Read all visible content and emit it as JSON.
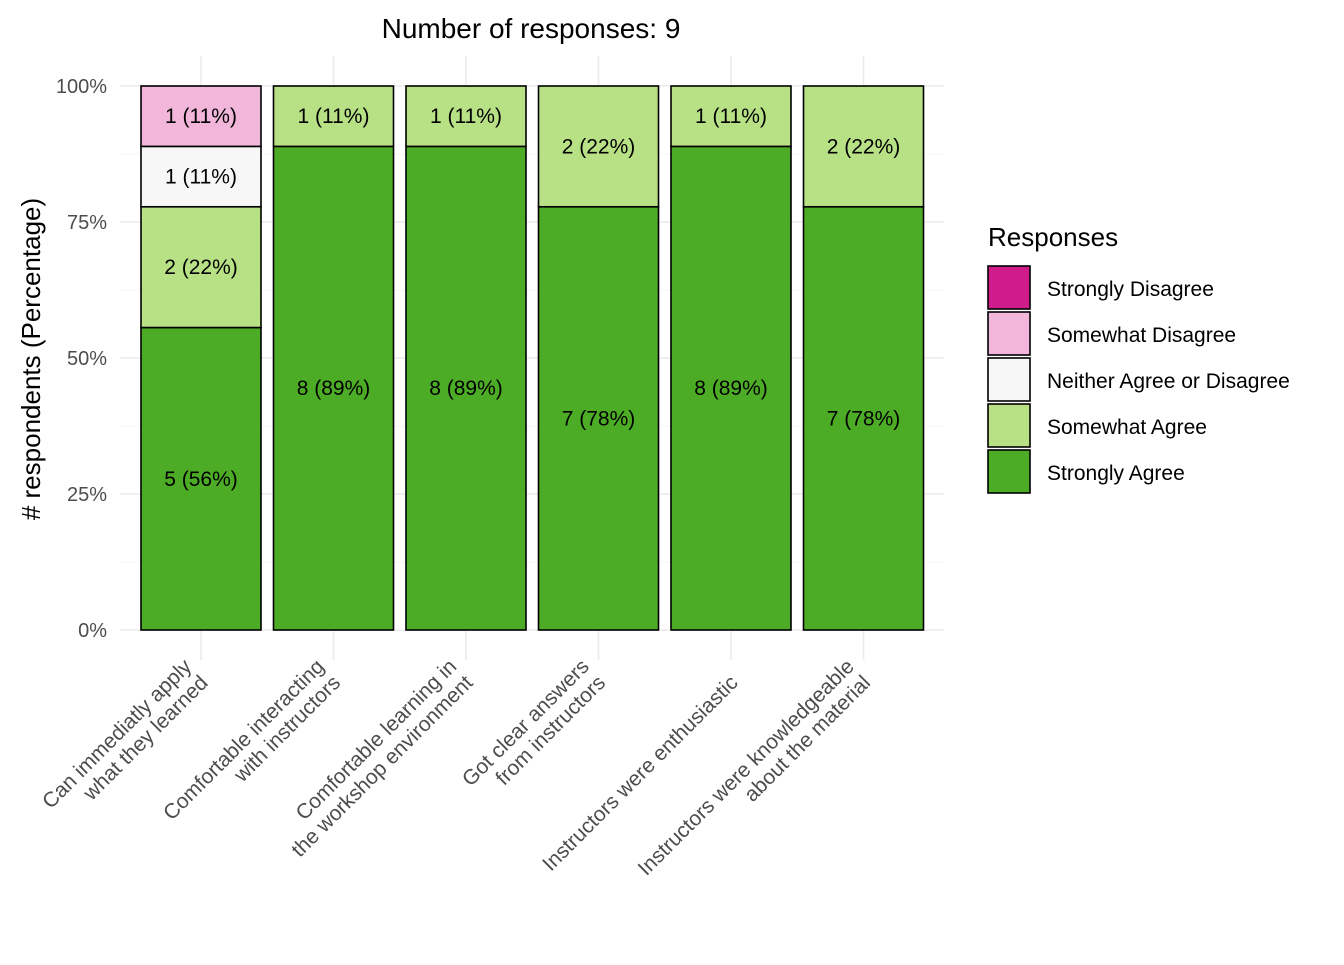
{
  "chart_data": {
    "type": "bar",
    "stacked": true,
    "title": "Number of responses: 9",
    "xlabel": "",
    "ylabel": "# respondents (Percentage)",
    "ylim": [
      0,
      100
    ],
    "yticks": [
      0,
      25,
      50,
      75,
      100
    ],
    "ytick_labels": [
      "0%",
      "25%",
      "50%",
      "75%",
      "100%"
    ],
    "grid": true,
    "legend": {
      "title": "Responses",
      "placement": "right"
    },
    "categories": [
      "Can immediatly apply\nwhat they learned",
      "Comfortable interacting\nwith instructors",
      "Comfortable learning in\nthe workshop environment",
      "Got clear answers\nfrom instructors",
      "Instructors were enthusiastic",
      "Instructors were knowledgeable\nabout the material"
    ],
    "series": [
      {
        "name": "Strongly Agree",
        "color": "#4DAC26",
        "counts": [
          5,
          8,
          8,
          7,
          8,
          7
        ],
        "values": [
          55.6,
          88.9,
          88.9,
          77.8,
          88.9,
          77.8
        ],
        "labels": [
          "5 (56%)",
          "8 (89%)",
          "8 (89%)",
          "7 (78%)",
          "8 (89%)",
          "7 (78%)"
        ]
      },
      {
        "name": "Somewhat Agree",
        "color": "#B8E186",
        "counts": [
          2,
          1,
          1,
          2,
          1,
          2
        ],
        "values": [
          22.2,
          11.1,
          11.1,
          22.2,
          11.1,
          22.2
        ],
        "labels": [
          "2 (22%)",
          "1 (11%)",
          "1 (11%)",
          "2 (22%)",
          "1 (11%)",
          "2 (22%)"
        ]
      },
      {
        "name": "Neither Agree or Disagree",
        "color": "#F7F7F7",
        "counts": [
          1,
          0,
          0,
          0,
          0,
          0
        ],
        "values": [
          11.1,
          0,
          0,
          0,
          0,
          0
        ],
        "labels": [
          "1 (11%)",
          "",
          "",
          "",
          "",
          ""
        ]
      },
      {
        "name": "Somewhat Disagree",
        "color": "#F1B6DA",
        "counts": [
          1,
          0,
          0,
          0,
          0,
          0
        ],
        "values": [
          11.1,
          0,
          0,
          0,
          0,
          0
        ],
        "labels": [
          "1 (11%)",
          "",
          "",
          "",
          "",
          ""
        ]
      },
      {
        "name": "Strongly Disagree",
        "color": "#D01C8B",
        "counts": [
          0,
          0,
          0,
          0,
          0,
          0
        ],
        "values": [
          0,
          0,
          0,
          0,
          0,
          0
        ],
        "labels": [
          "",
          "",
          "",
          "",
          "",
          ""
        ]
      }
    ],
    "legend_order": [
      "Strongly Disagree",
      "Somewhat Disagree",
      "Neither Agree or Disagree",
      "Somewhat Agree",
      "Strongly Agree"
    ]
  }
}
